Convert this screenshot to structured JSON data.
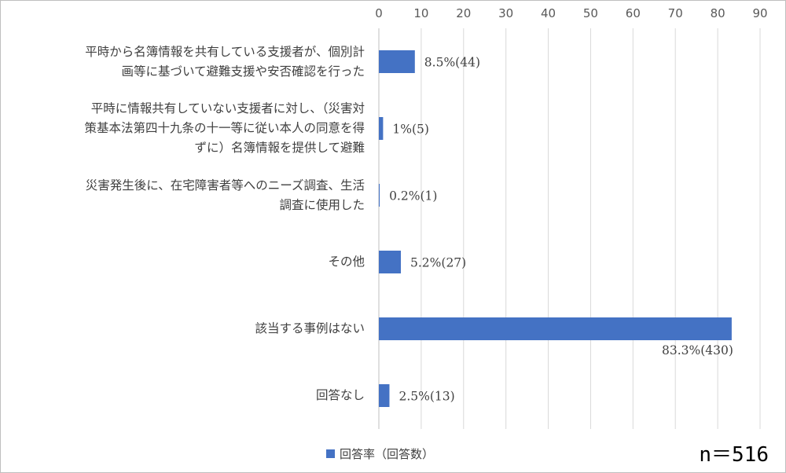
{
  "chart_data": {
    "type": "bar",
    "orientation": "horizontal",
    "categories": [
      [
        "平時から名簿情報を共有している支援者が、個別計",
        "画等に基づいて避難支援や安否確認を行った"
      ],
      [
        "平時に情報共有していない支援者に対し、（災害対",
        "策基本法第四十九条の十一等に従い本人の同意を得",
        "ずに）名簿情報を提供して避難"
      ],
      [
        "災害発生後に、在宅障害者等へのニーズ調査、生活",
        "調査に使用した"
      ],
      [
        "その他"
      ],
      [
        "該当する事例はない"
      ],
      [
        "回答なし"
      ]
    ],
    "series": [
      {
        "name": "回答率（回答数）",
        "values": [
          8.5,
          1,
          0.2,
          5.2,
          83.3,
          2.5
        ],
        "data_labels": [
          "8.5%(44)",
          "1%(5)",
          "0.2%(1)",
          "5.2%(27)",
          "83.3%(430)",
          "2.5%(13)"
        ],
        "color": "#4472c4"
      }
    ],
    "xlim": [
      0,
      90
    ],
    "xticks": [
      "0",
      "10",
      "20",
      "30",
      "40",
      "50",
      "60",
      "70",
      "80",
      "90"
    ],
    "grid": true,
    "axis_position": "top",
    "legend_position": "bottom"
  },
  "legend": {
    "label": "回答率（回答数）"
  },
  "sample_size": "n＝516"
}
